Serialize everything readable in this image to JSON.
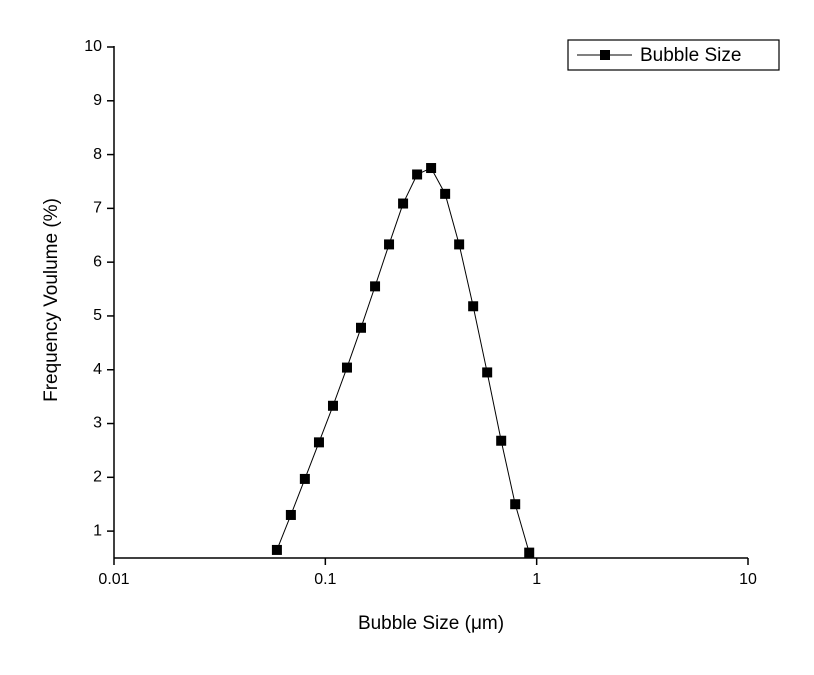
{
  "chart_data": {
    "type": "line",
    "x_label": "Bubble Size (μm)",
    "y_label": "Frequency Voulume (%)",
    "x": [
      0.059,
      0.0687,
      0.08,
      0.0933,
      0.1087,
      0.1266,
      0.1475,
      0.1719,
      0.2002,
      0.2333,
      0.2718,
      0.3166,
      0.3689,
      0.4297,
      0.5006,
      0.5832,
      0.6794,
      0.7915,
      0.922
    ],
    "series": [
      {
        "name": "Bubble Size",
        "color": "#000000",
        "values": [
          0.65,
          1.3,
          1.97,
          2.65,
          3.33,
          4.04,
          4.78,
          5.55,
          6.33,
          7.09,
          7.63,
          7.75,
          7.27,
          6.33,
          5.18,
          3.95,
          2.68,
          1.5,
          0.6
        ]
      }
    ],
    "xscale": "log",
    "xlim": [
      0.01,
      10
    ],
    "xticks": [
      0.01,
      0.1,
      1,
      10
    ],
    "ylim": [
      0.5,
      10
    ],
    "yticks": [
      1,
      2,
      3,
      4,
      5,
      6,
      7,
      8,
      9,
      10
    ],
    "legend": "upper right",
    "grid": false
  }
}
